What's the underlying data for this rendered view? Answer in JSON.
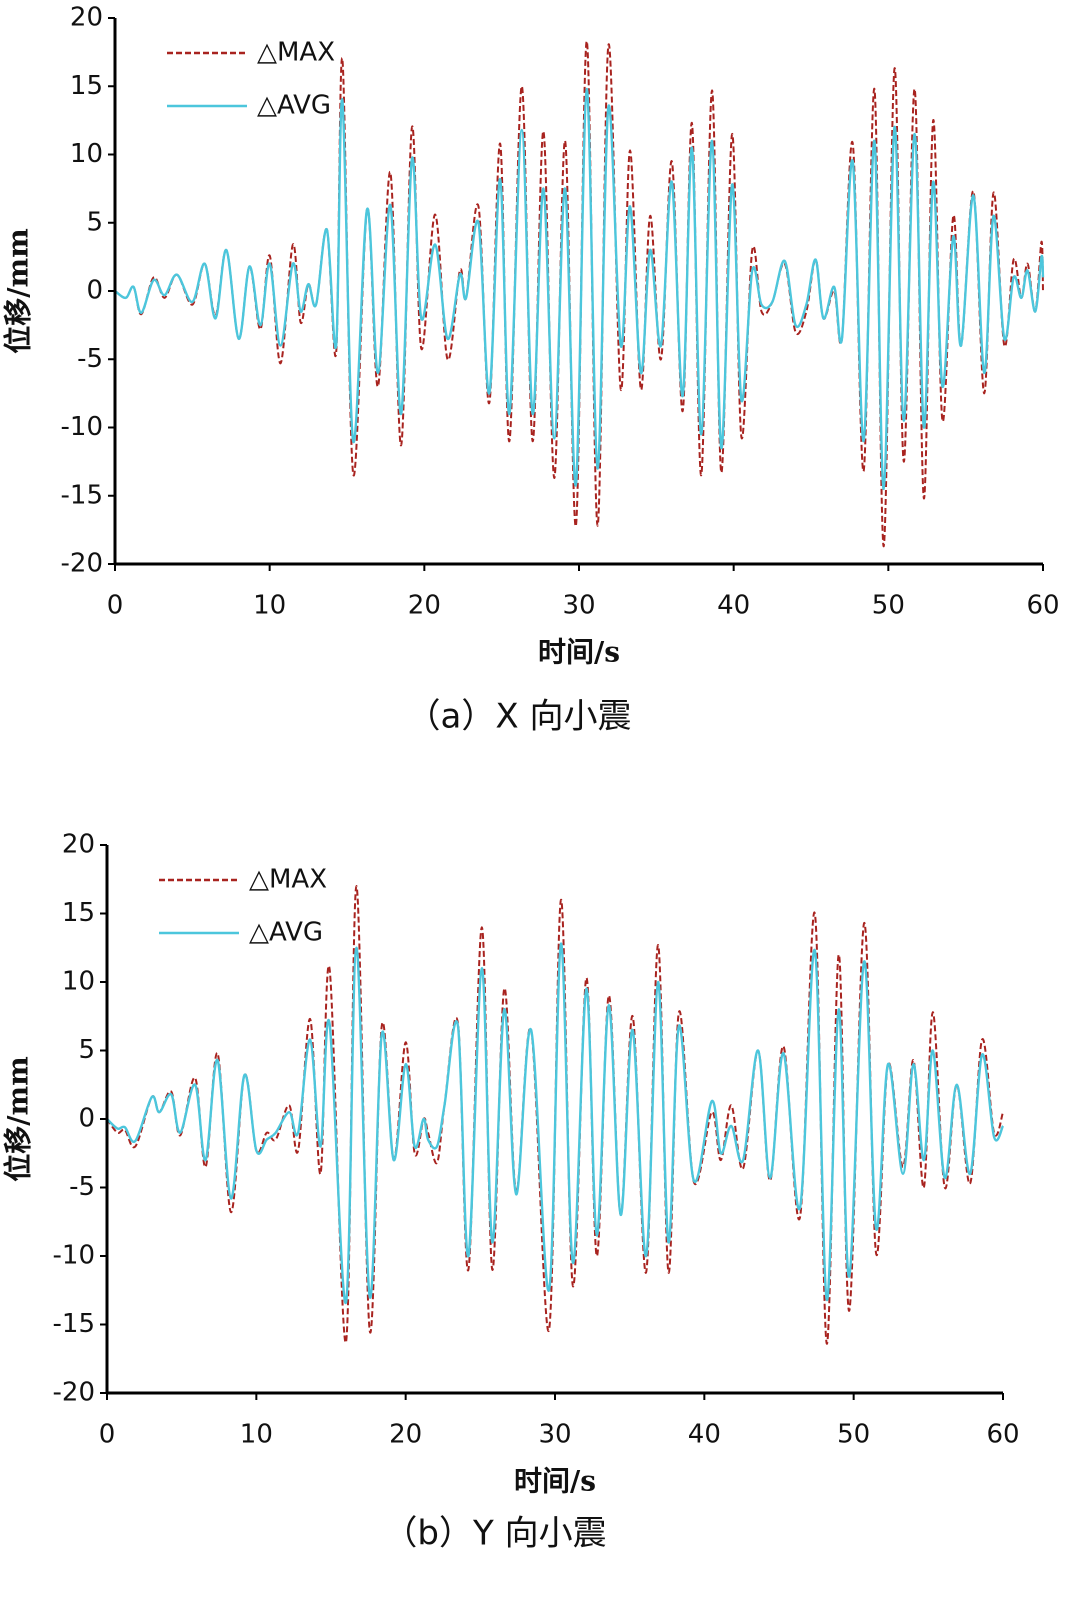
{
  "chart_data": [
    {
      "type": "line",
      "caption": "（a）X 向小震",
      "xlabel": "时间/s",
      "ylabel": "位移/mm",
      "xlim": [
        0,
        60
      ],
      "ylim": [
        -20,
        20
      ],
      "xticks": [
        0,
        10,
        20,
        30,
        40,
        50,
        60
      ],
      "yticks": [
        -20,
        -15,
        -10,
        -5,
        0,
        5,
        10,
        15,
        20
      ],
      "legend": "upper left",
      "x": [
        0,
        0.7,
        1.2,
        1.7,
        2.5,
        3.2,
        4,
        5,
        5.8,
        6.5,
        7.2,
        8,
        8.7,
        9.4,
        10,
        10.7,
        11.5,
        12,
        12.5,
        13,
        13.7,
        14.3,
        14.7,
        15.4,
        16.3,
        17,
        17.8,
        18.5,
        19.2,
        19.8,
        20.7,
        21.5,
        22.3,
        22.7,
        23.5,
        24.2,
        24.9,
        25.5,
        26.3,
        27,
        27.7,
        28.4,
        29.1,
        29.8,
        30.5,
        31.2,
        31.9,
        32.7,
        33.3,
        34,
        34.6,
        35.3,
        36,
        36.7,
        37.3,
        37.9,
        38.6,
        39.2,
        39.9,
        40.5,
        41.2,
        41.8,
        42.5,
        43.3,
        44,
        44.7,
        45.3,
        45.8,
        46.5,
        47,
        47.7,
        48.4,
        49.1,
        49.7,
        50.4,
        51,
        51.7,
        52.3,
        52.9,
        53.5,
        54.2,
        54.7,
        55.5,
        56.2,
        56.8,
        57.5,
        58.1,
        58.6,
        59,
        59.5,
        59.9,
        60
      ],
      "series": [
        {
          "name": "△MAX",
          "color": "#a8231f",
          "dash": true,
          "values": [
            0,
            -0.5,
            0.3,
            -1.7,
            1,
            -0.5,
            1.2,
            -1,
            2,
            -1.8,
            3,
            -3.5,
            1.8,
            -2.8,
            2.6,
            -5.3,
            3.4,
            -2.3,
            0.5,
            -1,
            4.5,
            -4.5,
            17,
            -13.4,
            6,
            -7,
            8.7,
            -11.3,
            12,
            -4.2,
            5.6,
            -5,
            1.5,
            -0.5,
            6.2,
            -8.2,
            10.8,
            -11,
            15,
            -11,
            11.7,
            -13.7,
            11,
            -17.2,
            18.3,
            -17.2,
            18,
            -7.2,
            10.3,
            -7.2,
            5.5,
            -5,
            9.5,
            -8.8,
            12.3,
            -13.5,
            14.7,
            -13.3,
            11.5,
            -10.7,
            3,
            -1.5,
            -0.8,
            2,
            -3,
            -1.5,
            2.3,
            -2,
            0,
            -3.5,
            10.8,
            -13.2,
            14.8,
            -18.7,
            16.3,
            -12.5,
            14.8,
            -15.2,
            12.5,
            -9.5,
            5.5,
            -4,
            7.3,
            -7.5,
            7.2,
            -4,
            2.3,
            -0.5,
            2,
            -1.5,
            3.6,
            0
          ]
        },
        {
          "name": "△AVG",
          "color": "#4cc6dc",
          "dash": false,
          "values": [
            0,
            -0.5,
            0.3,
            -1.6,
            0.8,
            -0.3,
            1.2,
            -0.8,
            2,
            -2,
            3,
            -3.5,
            1.8,
            -2.5,
            2,
            -4,
            2,
            -1.5,
            0.5,
            -1,
            4.5,
            -4,
            14,
            -11,
            6,
            -6,
            6.3,
            -9,
            9.7,
            -2,
            3.4,
            -3.5,
            1.2,
            -0.5,
            5,
            -7.5,
            8.2,
            -9,
            11.8,
            -9,
            7.5,
            -10.8,
            7.5,
            -14.2,
            14.8,
            -13,
            13.5,
            -4,
            6.2,
            -6,
            3,
            -4,
            8,
            -7.7,
            10.5,
            -10.5,
            11,
            -11.5,
            7.8,
            -8,
            1.5,
            -1,
            -0.8,
            2.2,
            -2.5,
            -1,
            2.3,
            -2,
            0.3,
            -3.5,
            9.5,
            -11,
            11,
            -14.5,
            12,
            -9.5,
            11.5,
            -10,
            8,
            -7,
            4,
            -4,
            7,
            -6,
            5.5,
            -3.5,
            1,
            -0.5,
            1.5,
            -1.5,
            2.5,
            1
          ]
        }
      ]
    },
    {
      "type": "line",
      "caption": "（b）Y 向小震",
      "xlabel": "时间/s",
      "ylabel": "位移/mm",
      "xlim": [
        0,
        60
      ],
      "ylim": [
        -20,
        20
      ],
      "xticks": [
        0,
        10,
        20,
        30,
        40,
        50,
        60
      ],
      "yticks": [
        -20,
        -15,
        -10,
        -5,
        0,
        5,
        10,
        15,
        20
      ],
      "legend": "upper left",
      "x": [
        0,
        0.7,
        1.2,
        1.9,
        3,
        3.5,
        4.3,
        4.9,
        5.9,
        6.6,
        7.4,
        8.3,
        9.2,
        10,
        10.7,
        11.3,
        12.2,
        12.8,
        13.6,
        14.3,
        14.9,
        16,
        16.7,
        17.6,
        18.4,
        19.2,
        20,
        20.6,
        21.2,
        21.5,
        22.1,
        22.6,
        23.5,
        24.2,
        25.1,
        25.8,
        26.6,
        27.4,
        28.4,
        29.6,
        30.4,
        31.2,
        32.1,
        32.8,
        33.6,
        34.4,
        35.2,
        36.1,
        36.9,
        37.6,
        38.3,
        39.3,
        40.5,
        41.1,
        41.8,
        42.6,
        43.6,
        44.4,
        45.3,
        46.4,
        47.4,
        48.2,
        49,
        49.7,
        50.7,
        51.5,
        52.3,
        53.3,
        54,
        54.7,
        55.3,
        56.1,
        56.9,
        57.8,
        58.6,
        59.4,
        60
      ],
      "series": [
        {
          "name": "△MAX",
          "color": "#a8231f",
          "dash": true,
          "values": [
            0,
            -1,
            -0.8,
            -2,
            1.6,
            0.5,
            2,
            -1.2,
            3,
            -3.5,
            4.8,
            -6.8,
            3.2,
            -2.3,
            -1,
            -1.5,
            1,
            -2.3,
            7.3,
            -4,
            11,
            -16.3,
            17,
            -15.5,
            6.8,
            -3,
            5.6,
            -2.5,
            0,
            -1,
            -3.2,
            1,
            7,
            -11,
            14,
            -11,
            9.5,
            -5.3,
            6.5,
            -15.4,
            16,
            -12.2,
            10.3,
            -10,
            9,
            -7,
            7.5,
            -11.2,
            12.7,
            -11.2,
            7.8,
            -4.6,
            0.5,
            -3,
            1,
            -3.6,
            5,
            -4.5,
            5.3,
            -7.2,
            15,
            -16.4,
            12,
            -14,
            14.3,
            -9.8,
            4,
            -3.5,
            4.3,
            -5,
            7.8,
            -5,
            2.5,
            -4.7,
            5.8,
            -1,
            0.5
          ]
        },
        {
          "name": "△AVG",
          "color": "#4cc6dc",
          "dash": false,
          "values": [
            0,
            -0.7,
            -0.6,
            -1.6,
            1.6,
            0.5,
            1.8,
            -1,
            2.5,
            -3,
            4.3,
            -5.8,
            3.2,
            -2.3,
            -1.5,
            -1,
            0.5,
            -1,
            5.8,
            -2,
            7,
            -13.4,
            12.5,
            -13,
            6.2,
            -3,
            4,
            -2,
            0,
            -1.5,
            -2,
            1,
            6.8,
            -10,
            11,
            -9,
            8,
            -5.5,
            6.5,
            -12.5,
            12.8,
            -10.5,
            9.5,
            -8.5,
            8.3,
            -7,
            6.5,
            -10,
            10,
            -9,
            6.8,
            -4.5,
            1.3,
            -2.5,
            -0.5,
            -3,
            5,
            -4.3,
            4.8,
            -6.5,
            12.3,
            -13.2,
            8,
            -11.5,
            11.5,
            -8,
            4,
            -4,
            4,
            -3,
            5,
            -4.3,
            2.5,
            -4,
            4.7,
            -1.3,
            -0.5
          ]
        }
      ]
    }
  ]
}
